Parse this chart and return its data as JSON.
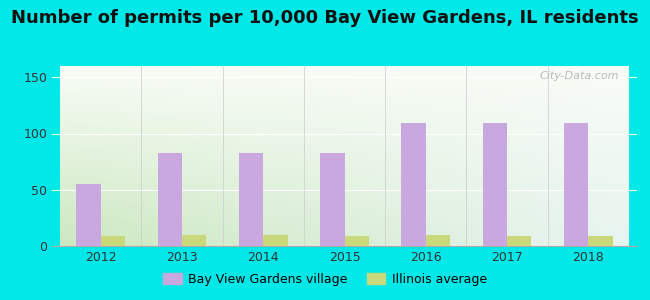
{
  "title": "Number of permits per 10,000 Bay View Gardens, IL residents",
  "years": [
    2012,
    2013,
    2014,
    2015,
    2016,
    2017,
    2018
  ],
  "bay_view_values": [
    55,
    83,
    83,
    83,
    109,
    109,
    109
  ],
  "illinois_values": [
    9,
    10,
    10,
    9,
    10,
    9,
    9
  ],
  "bay_view_color": "#c9a8e0",
  "illinois_color": "#c8d87a",
  "background_outer": "#00e8e8",
  "background_inner_top": "#f0f8ee",
  "background_inner_bottom": "#d8ecd0",
  "ylim": [
    0,
    160
  ],
  "yticks": [
    0,
    50,
    100,
    150
  ],
  "bar_width": 0.3,
  "legend_bay_view": "Bay View Gardens village",
  "legend_illinois": "Illinois average",
  "title_fontsize": 13,
  "watermark": "City-Data.com"
}
